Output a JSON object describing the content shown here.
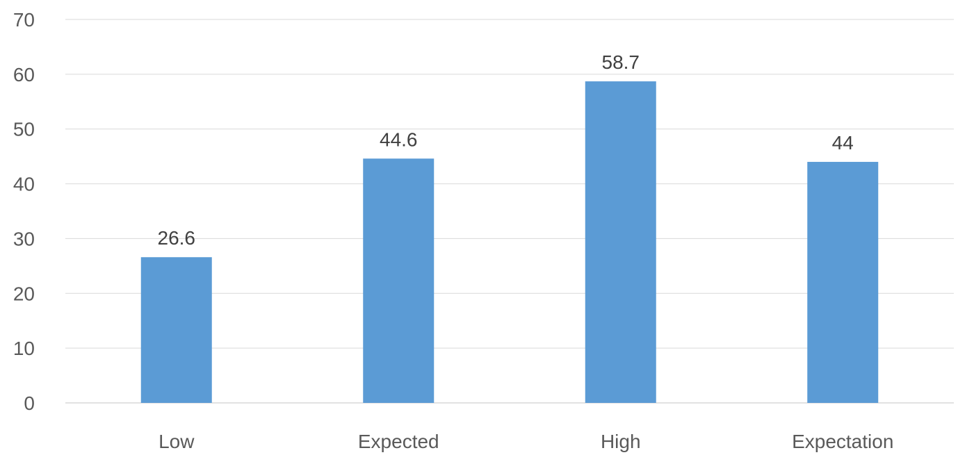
{
  "chart_data": {
    "type": "bar",
    "title": "",
    "xlabel": "",
    "ylabel": "",
    "categories": [
      "Low",
      "Expected",
      "High",
      "Expectation"
    ],
    "values": [
      26.6,
      44.6,
      58.7,
      44
    ],
    "data_labels": [
      "26.6",
      "44.6",
      "58.7",
      "44"
    ],
    "ylim": [
      0,
      70
    ],
    "y_ticks": [
      0,
      10,
      20,
      30,
      40,
      50,
      60,
      70
    ],
    "y_tick_labels": [
      "0",
      "10",
      "20",
      "30",
      "40",
      "50",
      "60",
      "70"
    ],
    "grid": true,
    "legend": "none",
    "bar_color": "#5b9bd5"
  }
}
